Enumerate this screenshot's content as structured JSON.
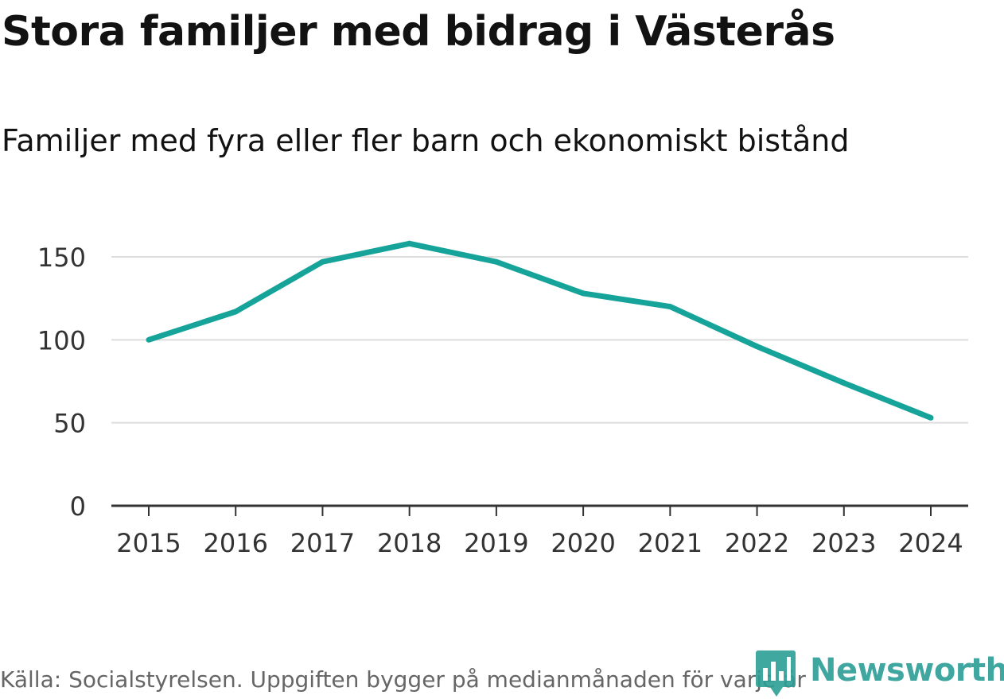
{
  "header": {
    "title": "Stora familjer med bidrag i Västerås",
    "subtitle": "Familjer med fyra eller fler barn och ekonomiskt bistånd"
  },
  "footer": {
    "source": "Källa: Socialstyrelsen. Uppgiften bygger på medianmånaden för varje år",
    "brand": "Newsworthy"
  },
  "colors": {
    "line": "#16a39a",
    "grid": "#dddddd",
    "axis": "#333333",
    "brand": "#2c9e96"
  },
  "icons": {
    "logo": "newsworthy-logo-icon"
  },
  "chart_data": {
    "type": "line",
    "title": "Stora familjer med bidrag i Västerås",
    "subtitle": "Familjer med fyra eller fler barn och ekonomiskt bistånd",
    "xlabel": "",
    "ylabel": "",
    "x": [
      "2015",
      "2016",
      "2017",
      "2018",
      "2019",
      "2020",
      "2021",
      "2022",
      "2023",
      "2024"
    ],
    "series": [
      {
        "name": "Familjer med fyra eller fler barn och ekonomiskt bistånd",
        "values": [
          100,
          117,
          147,
          158,
          147,
          128,
          120,
          96,
          74,
          53
        ]
      }
    ],
    "yticks": [
      0,
      50,
      100,
      150
    ],
    "ylim": [
      0,
      160
    ],
    "grid": true,
    "legend": "none"
  }
}
